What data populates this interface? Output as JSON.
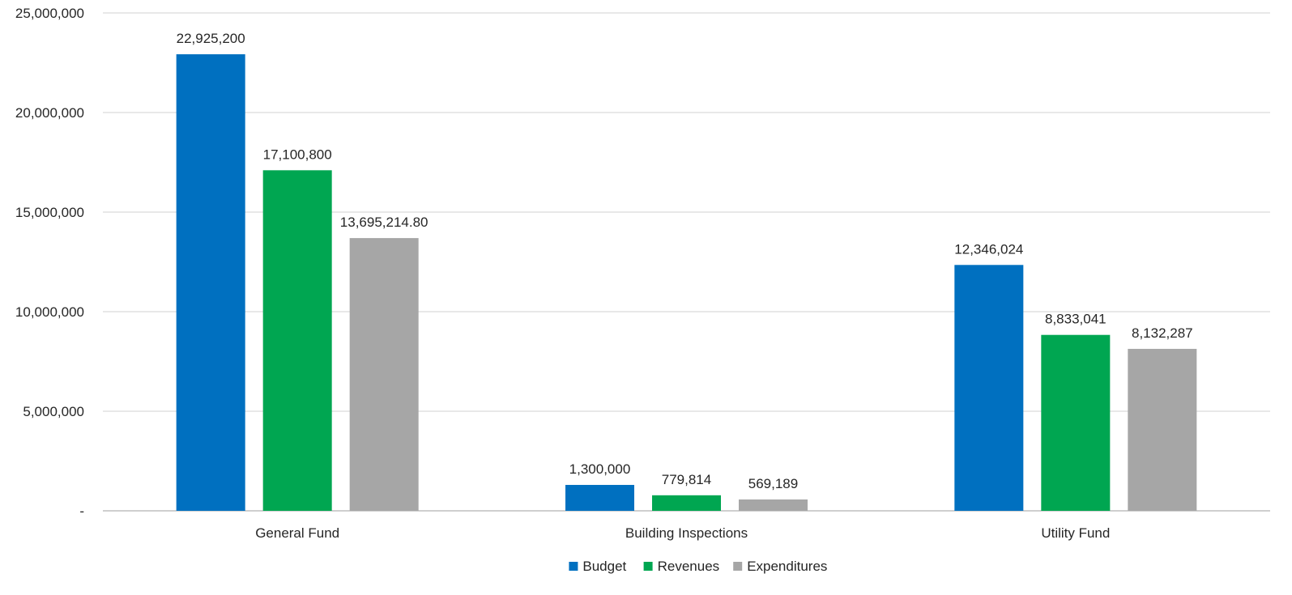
{
  "chart_data": {
    "type": "bar",
    "title": "",
    "xlabel": "",
    "ylabel": "",
    "categories": [
      "General Fund",
      "Building Inspections",
      "Utility Fund"
    ],
    "series": [
      {
        "name": "Budget",
        "color": "#0070C0",
        "values": [
          22925200,
          1300000,
          12346024
        ],
        "labels": [
          "22,925,200",
          "1,300,000",
          "12,346,024"
        ]
      },
      {
        "name": "Revenues",
        "color": "#00A651",
        "values": [
          17100800,
          779814,
          8833041
        ],
        "labels": [
          "17,100,800",
          "779,814",
          "8,833,041"
        ]
      },
      {
        "name": "Expenditures",
        "color": "#A6A6A6",
        "values": [
          13695214.8,
          569189,
          8132287
        ],
        "labels": [
          "13,695,214.80",
          "569,189",
          "8,132,287"
        ]
      }
    ],
    "ylim": [
      0,
      25000000
    ],
    "yticks": [
      0,
      5000000,
      10000000,
      15000000,
      20000000,
      25000000
    ],
    "ytick_labels": [
      "-",
      "5,000,000",
      "10,000,000",
      "15,000,000",
      "20,000,000",
      "25,000,000"
    ],
    "grid": true,
    "legend_position": "bottom"
  }
}
